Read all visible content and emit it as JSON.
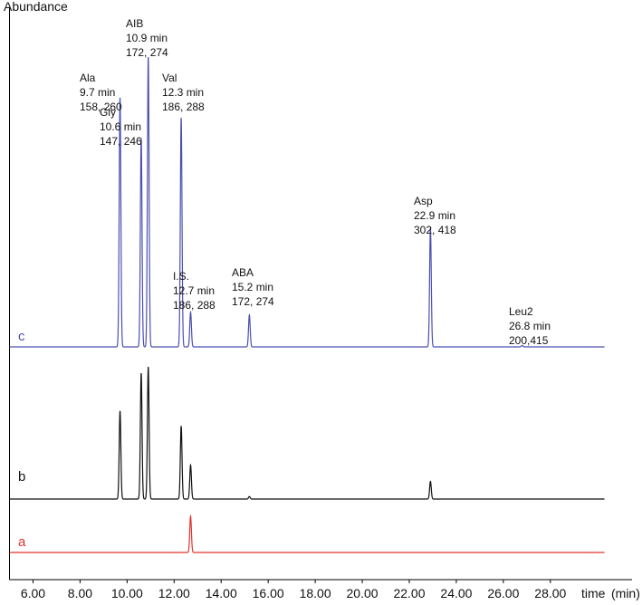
{
  "chart_data": {
    "type": "line",
    "ylabel": "Abundance",
    "x_axis_label": "time",
    "x_unit": "(min)",
    "xlim": [
      5.0,
      30.0
    ],
    "x_ticks": [
      "6.00",
      "8.00",
      "10.00",
      "12.00",
      "14.00",
      "16.00",
      "18.00",
      "20.00",
      "22.00",
      "24.00",
      "26.00",
      "28.00"
    ],
    "colors": {
      "c": "#4b4fb0",
      "b": "#111111",
      "a": "#e0332d"
    },
    "series": [
      {
        "name": "c",
        "peaks": [
          {
            "x": 9.7,
            "height": 0.86
          },
          {
            "x": 10.6,
            "height": 0.72
          },
          {
            "x": 10.9,
            "height": 1.0
          },
          {
            "x": 12.3,
            "height": 0.79
          },
          {
            "x": 12.7,
            "height": 0.12
          },
          {
            "x": 15.2,
            "height": 0.11
          },
          {
            "x": 22.9,
            "height": 0.41
          },
          {
            "x": 26.8,
            "height": 0.005
          }
        ]
      },
      {
        "name": "b",
        "peaks": [
          {
            "x": 9.7,
            "height": 0.7
          },
          {
            "x": 10.6,
            "height": 1.0
          },
          {
            "x": 10.9,
            "height": 1.05
          },
          {
            "x": 12.3,
            "height": 0.58
          },
          {
            "x": 12.7,
            "height": 0.27
          },
          {
            "x": 15.2,
            "height": 0.02
          },
          {
            "x": 22.9,
            "height": 0.14
          }
        ]
      },
      {
        "name": "a",
        "peaks": [
          {
            "x": 12.7,
            "height": 1.0
          }
        ]
      }
    ],
    "annotations": [
      {
        "lines": [
          "Ala",
          "9.7 min",
          "158, 260"
        ]
      },
      {
        "lines": [
          "AIB",
          "10.9 min",
          "172, 274"
        ]
      },
      {
        "lines": [
          "Gly",
          "10.6 min",
          "147, 246"
        ]
      },
      {
        "lines": [
          "Val",
          "12.3 min",
          "186, 288"
        ]
      },
      {
        "lines": [
          "I.S.",
          "12.7 min",
          "186, 288"
        ]
      },
      {
        "lines": [
          "ABA",
          "15.2 min",
          "172, 274"
        ]
      },
      {
        "lines": [
          "Asp",
          "22.9 min",
          "302, 418"
        ]
      },
      {
        "lines": [
          "Leu2",
          "26.8 min",
          "200,415"
        ]
      }
    ]
  }
}
